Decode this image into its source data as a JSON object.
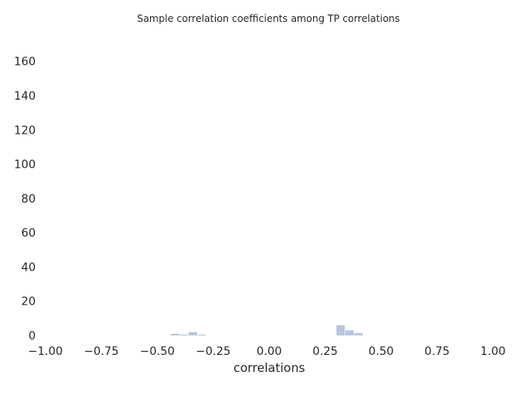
{
  "chart_data": {
    "type": "bar",
    "subtype": "histogram",
    "title": "Sample correlation coefficients among TP correlations",
    "xlabel": "correlations",
    "ylabel": "",
    "xlim": [
      -1.0,
      1.0
    ],
    "ylim": [
      0,
      175
    ],
    "grid": false,
    "x_ticks": [
      "−1.00",
      "−0.75",
      "−0.50",
      "−0.25",
      "0.00",
      "0.25",
      "0.50",
      "0.75",
      "1.00"
    ],
    "y_ticks": [
      "0",
      "20",
      "40",
      "60",
      "80",
      "100",
      "120",
      "140",
      "160"
    ],
    "bar_color": "#4c72b0",
    "bar_width": 0.04,
    "bins": [
      {
        "x0": -0.44,
        "x1": -0.4,
        "value": 1
      },
      {
        "x0": -0.4,
        "x1": -0.36,
        "value": 0.5
      },
      {
        "x0": -0.36,
        "x1": -0.32,
        "value": 2
      },
      {
        "x0": -0.32,
        "x1": -0.28,
        "value": 0.5
      },
      {
        "x0": 0.3,
        "x1": 0.34,
        "value": 6
      },
      {
        "x0": 0.34,
        "x1": 0.38,
        "value": 3
      },
      {
        "x0": 0.38,
        "x1": 0.42,
        "value": 1.5
      }
    ]
  }
}
